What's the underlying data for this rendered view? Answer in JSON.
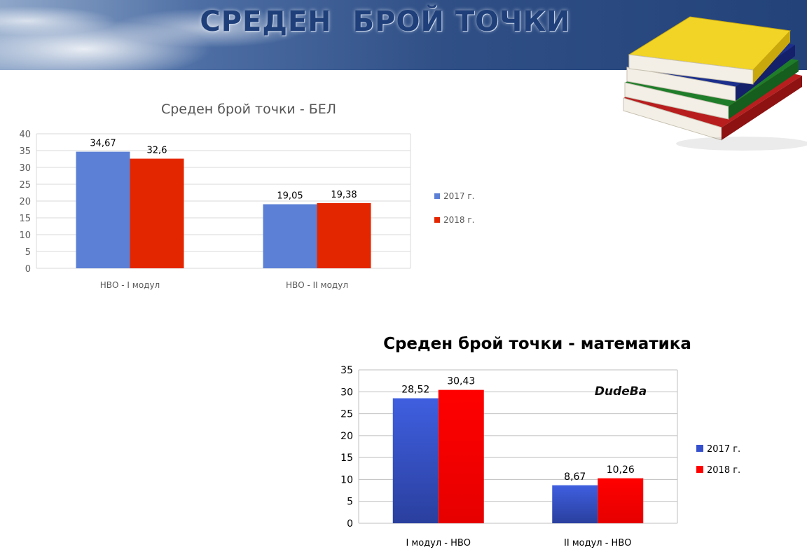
{
  "page": {
    "title": "СРЕДЕН  БРОЙ ТОЧКИ",
    "watermark": "DudeBa"
  },
  "chart_data": [
    {
      "type": "bar",
      "title": "Среден брой точки - БЕЛ",
      "categories": [
        "НВО - I модул",
        "НВО - II модул"
      ],
      "series": [
        {
          "name": "2017 г.",
          "values": [
            34.67,
            19.05
          ],
          "labels": [
            "34,67",
            "19,05"
          ],
          "color": "#5b80d6"
        },
        {
          "name": "2018 г.",
          "values": [
            32.6,
            19.38
          ],
          "labels": [
            "32,6",
            "19,38"
          ],
          "color": "#e42600"
        }
      ],
      "ylim": [
        0,
        40
      ],
      "yticks": [
        "0",
        "5",
        "10",
        "15",
        "20",
        "25",
        "30",
        "35",
        "40"
      ],
      "grid": true,
      "legend": "right"
    },
    {
      "type": "bar",
      "title": "Среден брой точки - математика",
      "categories": [
        "I модул - НВО",
        "II модул - НВО"
      ],
      "series": [
        {
          "name": "2017 г.",
          "values": [
            28.52,
            8.67
          ],
          "labels": [
            "28,52",
            "8,67"
          ],
          "color": "#3550cc"
        },
        {
          "name": "2018 г.",
          "values": [
            30.43,
            10.26
          ],
          "labels": [
            "30,43",
            "10,26"
          ],
          "color": "#ff0000"
        }
      ],
      "ylim": [
        0,
        35
      ],
      "yticks": [
        "0",
        "5",
        "10",
        "15",
        "20",
        "25",
        "30",
        "35"
      ],
      "grid": true,
      "legend": "right"
    }
  ]
}
